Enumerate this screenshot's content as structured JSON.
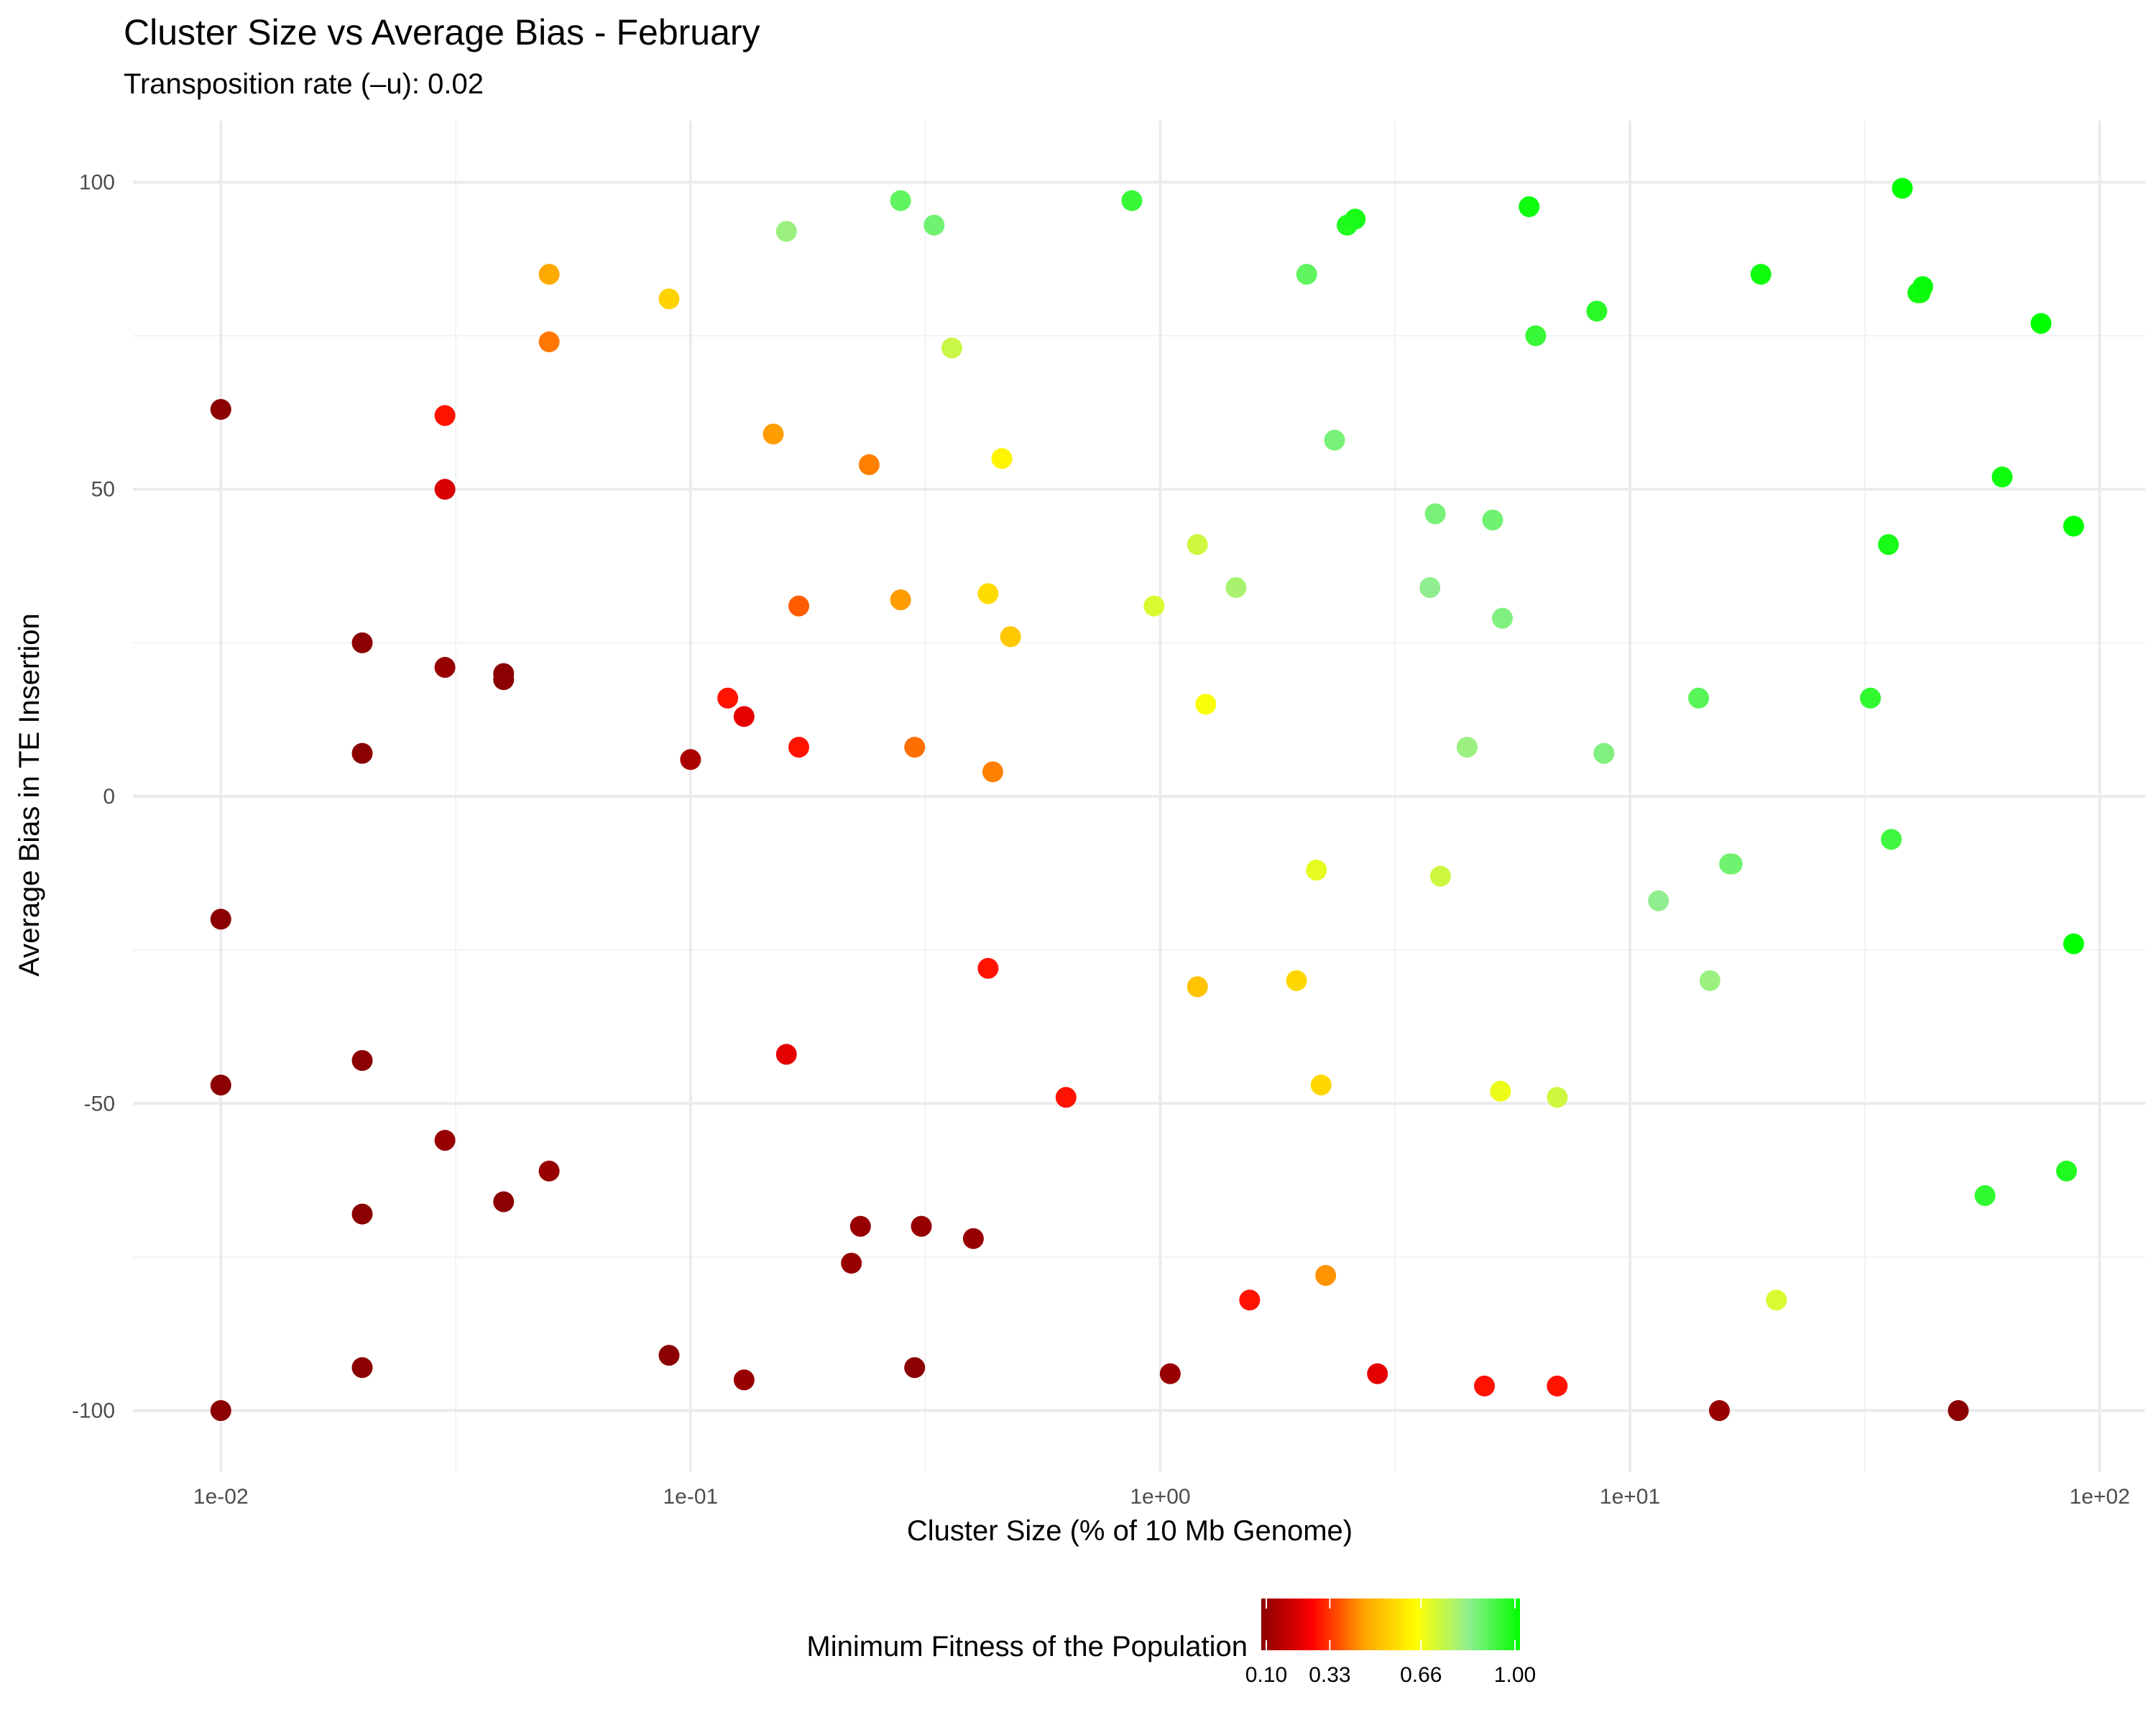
{
  "chart_data": {
    "type": "scatter",
    "title": "Cluster Size vs Average Bias - February",
    "subtitle": "Transposition rate (–u): 0.02",
    "xlabel": "Cluster Size (% of 10 Mb Genome)",
    "ylabel": "Average Bias in TE Insertion",
    "x_scale": "log10",
    "xlim": [
      0.0065,
      125
    ],
    "ylim": [
      -110,
      110
    ],
    "x_ticks": [
      {
        "value": 0.01,
        "label": "1e-02"
      },
      {
        "value": 0.1,
        "label": "1e-01"
      },
      {
        "value": 1,
        "label": "1e+00"
      },
      {
        "value": 10,
        "label": "1e+01"
      },
      {
        "value": 100,
        "label": "1e+02"
      }
    ],
    "y_ticks": [
      {
        "value": 100,
        "label": "100"
      },
      {
        "value": 50,
        "label": "50"
      },
      {
        "value": 0,
        "label": "0"
      },
      {
        "value": -50,
        "label": "-50"
      },
      {
        "value": -100,
        "label": "-100"
      }
    ],
    "grid": true,
    "legend": {
      "title": "Minimum Fitness of the Population",
      "placement": "bottom",
      "range": [
        0.1,
        1.0
      ],
      "ticks": [
        {
          "value": 0.1,
          "label": "0.10"
        },
        {
          "value": 0.33,
          "label": "0.33"
        },
        {
          "value": 0.66,
          "label": "0.66"
        },
        {
          "value": 1.0,
          "label": "1.00"
        }
      ],
      "colors": [
        "#8b0000",
        "#ff0000",
        "#ffa500",
        "#ffff00",
        "#90ee90",
        "#00ff00"
      ]
    },
    "points": [
      {
        "x": 0.01,
        "y": 63,
        "fitness": 0.1
      },
      {
        "x": 0.01,
        "y": -20,
        "fitness": 0.1
      },
      {
        "x": 0.01,
        "y": -47,
        "fitness": 0.1
      },
      {
        "x": 0.01,
        "y": -100,
        "fitness": 0.1
      },
      {
        "x": 0.02,
        "y": 25,
        "fitness": 0.1
      },
      {
        "x": 0.02,
        "y": 7,
        "fitness": 0.1
      },
      {
        "x": 0.02,
        "y": -43,
        "fitness": 0.1
      },
      {
        "x": 0.02,
        "y": -68,
        "fitness": 0.1
      },
      {
        "x": 0.02,
        "y": -93,
        "fitness": 0.1
      },
      {
        "x": 0.03,
        "y": 62,
        "fitness": 0.3
      },
      {
        "x": 0.03,
        "y": 50,
        "fitness": 0.22
      },
      {
        "x": 0.03,
        "y": 21,
        "fitness": 0.12
      },
      {
        "x": 0.03,
        "y": -56,
        "fitness": 0.12
      },
      {
        "x": 0.04,
        "y": 20,
        "fitness": 0.1
      },
      {
        "x": 0.04,
        "y": 19,
        "fitness": 0.1
      },
      {
        "x": 0.04,
        "y": -66,
        "fitness": 0.1
      },
      {
        "x": 0.05,
        "y": 85,
        "fitness": 0.47
      },
      {
        "x": 0.05,
        "y": 74,
        "fitness": 0.41
      },
      {
        "x": 0.05,
        "y": -61,
        "fitness": 0.12
      },
      {
        "x": 0.09,
        "y": 81,
        "fitness": 0.55
      },
      {
        "x": 0.09,
        "y": -91,
        "fitness": 0.1
      },
      {
        "x": 0.1,
        "y": 6,
        "fitness": 0.15
      },
      {
        "x": 0.12,
        "y": 16,
        "fitness": 0.3
      },
      {
        "x": 0.13,
        "y": 13,
        "fitness": 0.24
      },
      {
        "x": 0.13,
        "y": -95,
        "fitness": 0.12
      },
      {
        "x": 0.15,
        "y": 59,
        "fitness": 0.45
      },
      {
        "x": 0.16,
        "y": 92,
        "fitness": 0.8
      },
      {
        "x": 0.16,
        "y": -42,
        "fitness": 0.24
      },
      {
        "x": 0.17,
        "y": 31,
        "fitness": 0.38
      },
      {
        "x": 0.17,
        "y": 8,
        "fitness": 0.3
      },
      {
        "x": 0.22,
        "y": -76,
        "fitness": 0.12
      },
      {
        "x": 0.23,
        "y": -70,
        "fitness": 0.12
      },
      {
        "x": 0.24,
        "y": 54,
        "fitness": 0.42
      },
      {
        "x": 0.28,
        "y": 97,
        "fitness": 0.88
      },
      {
        "x": 0.28,
        "y": 32,
        "fitness": 0.45
      },
      {
        "x": 0.3,
        "y": 8,
        "fitness": 0.4
      },
      {
        "x": 0.3,
        "y": -93,
        "fitness": 0.1
      },
      {
        "x": 0.31,
        "y": -70,
        "fitness": 0.12
      },
      {
        "x": 0.33,
        "y": 93,
        "fitness": 0.86
      },
      {
        "x": 0.36,
        "y": 73,
        "fitness": 0.73
      },
      {
        "x": 0.4,
        "y": -72,
        "fitness": 0.12
      },
      {
        "x": 0.43,
        "y": 33,
        "fitness": 0.57
      },
      {
        "x": 0.43,
        "y": -28,
        "fitness": 0.3
      },
      {
        "x": 0.44,
        "y": 4,
        "fitness": 0.42
      },
      {
        "x": 0.46,
        "y": 55,
        "fitness": 0.62
      },
      {
        "x": 0.48,
        "y": 26,
        "fitness": 0.53
      },
      {
        "x": 0.63,
        "y": -49,
        "fitness": 0.3
      },
      {
        "x": 0.87,
        "y": 97,
        "fitness": 0.93
      },
      {
        "x": 0.97,
        "y": 31,
        "fitness": 0.7
      },
      {
        "x": 1.05,
        "y": -94,
        "fitness": 0.12
      },
      {
        "x": 1.2,
        "y": 41,
        "fitness": 0.72
      },
      {
        "x": 1.2,
        "y": -31,
        "fitness": 0.52
      },
      {
        "x": 1.25,
        "y": 15,
        "fitness": 0.65
      },
      {
        "x": 1.45,
        "y": 34,
        "fitness": 0.78
      },
      {
        "x": 1.55,
        "y": -82,
        "fitness": 0.3
      },
      {
        "x": 1.95,
        "y": -30,
        "fitness": 0.56
      },
      {
        "x": 2.05,
        "y": 85,
        "fitness": 0.88
      },
      {
        "x": 2.15,
        "y": -12,
        "fitness": 0.68
      },
      {
        "x": 2.2,
        "y": -47,
        "fitness": 0.56
      },
      {
        "x": 2.25,
        "y": -78,
        "fitness": 0.44
      },
      {
        "x": 2.35,
        "y": 58,
        "fitness": 0.85
      },
      {
        "x": 2.5,
        "y": 93,
        "fitness": 0.96
      },
      {
        "x": 2.6,
        "y": 94,
        "fitness": 0.97
      },
      {
        "x": 2.9,
        "y": -94,
        "fitness": 0.24
      },
      {
        "x": 3.75,
        "y": 34,
        "fitness": 0.82
      },
      {
        "x": 3.85,
        "y": 46,
        "fitness": 0.85
      },
      {
        "x": 3.95,
        "y": -13,
        "fitness": 0.72
      },
      {
        "x": 4.5,
        "y": 8,
        "fitness": 0.8
      },
      {
        "x": 4.9,
        "y": -96,
        "fitness": 0.3
      },
      {
        "x": 5.1,
        "y": 45,
        "fitness": 0.86
      },
      {
        "x": 5.3,
        "y": -48,
        "fitness": 0.67
      },
      {
        "x": 5.35,
        "y": 29,
        "fitness": 0.84
      },
      {
        "x": 6.1,
        "y": 96,
        "fitness": 0.98
      },
      {
        "x": 6.3,
        "y": 75,
        "fitness": 0.93
      },
      {
        "x": 7.0,
        "y": -96,
        "fitness": 0.3
      },
      {
        "x": 7.0,
        "y": -49,
        "fitness": 0.72
      },
      {
        "x": 8.5,
        "y": 79,
        "fitness": 0.95
      },
      {
        "x": 8.8,
        "y": 7,
        "fitness": 0.84
      },
      {
        "x": 11.5,
        "y": -17,
        "fitness": 0.82
      },
      {
        "x": 14.0,
        "y": 16,
        "fitness": 0.89
      },
      {
        "x": 14.8,
        "y": -30,
        "fitness": 0.8
      },
      {
        "x": 15.5,
        "y": -100,
        "fitness": 0.12
      },
      {
        "x": 16.3,
        "y": -11,
        "fitness": 0.86
      },
      {
        "x": 16.5,
        "y": -11,
        "fitness": 0.86
      },
      {
        "x": 19.0,
        "y": 85,
        "fitness": 0.98
      },
      {
        "x": 20.5,
        "y": -82,
        "fitness": 0.7
      },
      {
        "x": 32.5,
        "y": 16,
        "fitness": 0.94
      },
      {
        "x": 35.5,
        "y": 41,
        "fitness": 0.97
      },
      {
        "x": 36.0,
        "y": -7,
        "fitness": 0.92
      },
      {
        "x": 38.0,
        "y": 99,
        "fitness": 1.0
      },
      {
        "x": 41.0,
        "y": 82,
        "fitness": 0.98
      },
      {
        "x": 41.5,
        "y": 82,
        "fitness": 0.98
      },
      {
        "x": 42.0,
        "y": 83,
        "fitness": 0.99
      },
      {
        "x": 50.0,
        "y": -100,
        "fitness": 0.1
      },
      {
        "x": 57.0,
        "y": -65,
        "fitness": 0.94
      },
      {
        "x": 62.0,
        "y": 52,
        "fitness": 0.98
      },
      {
        "x": 75.0,
        "y": 77,
        "fitness": 1.0
      },
      {
        "x": 85.0,
        "y": -61,
        "fitness": 0.96
      },
      {
        "x": 88.0,
        "y": 44,
        "fitness": 1.0
      },
      {
        "x": 88.0,
        "y": -24,
        "fitness": 1.0
      }
    ]
  }
}
